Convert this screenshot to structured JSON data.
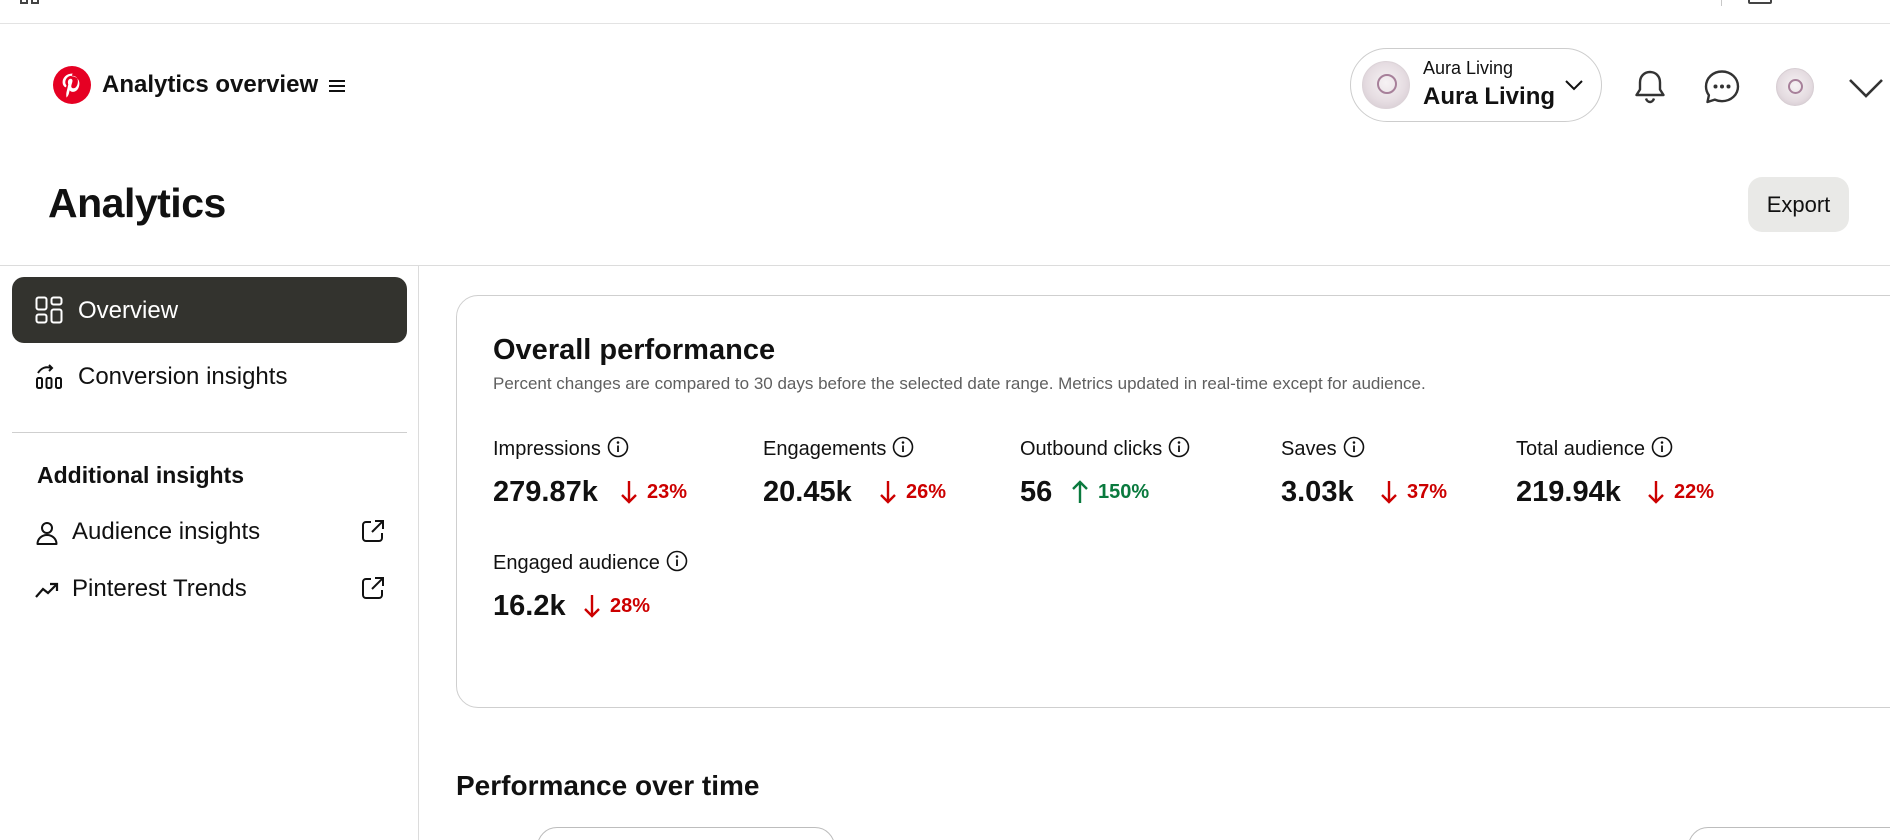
{
  "header": {
    "app_title": "Analytics overview",
    "account_small": "Aura Living",
    "account_name": "Aura Living"
  },
  "page": {
    "title": "Analytics",
    "export_label": "Export"
  },
  "sidebar": {
    "items": [
      {
        "label": "Overview",
        "icon": "grid-icon",
        "active": true
      },
      {
        "label": "Conversion insights",
        "icon": "conversion-chart-icon",
        "active": false
      }
    ],
    "section_heading": "Additional insights",
    "external_items": [
      {
        "label": "Audience insights",
        "icon": "person-icon"
      },
      {
        "label": "Pinterest Trends",
        "icon": "trend-up-icon"
      }
    ]
  },
  "card": {
    "title": "Overall performance",
    "subtitle": "Percent changes are compared to 30 days before the selected date range. Metrics updated in real-time except for audience.",
    "metrics": [
      {
        "label": "Impressions",
        "value": "279.87k",
        "change": "23%",
        "direction": "down"
      },
      {
        "label": "Engagements",
        "value": "20.45k",
        "change": "26%",
        "direction": "down"
      },
      {
        "label": "Outbound clicks",
        "value": "56",
        "change": "150%",
        "direction": "up"
      },
      {
        "label": "Saves",
        "value": "3.03k",
        "change": "37%",
        "direction": "down"
      },
      {
        "label": "Total audience",
        "value": "219.94k",
        "change": "22%",
        "direction": "down"
      },
      {
        "label": "Engaged audience",
        "value": "16.2k",
        "change": "28%",
        "direction": "down"
      }
    ]
  },
  "performance_over_time": {
    "title": "Performance over time"
  },
  "colors": {
    "brand": "#e60023",
    "active_nav": "#33332e",
    "negative": "#cc0000",
    "positive": "#0a7a3e"
  }
}
